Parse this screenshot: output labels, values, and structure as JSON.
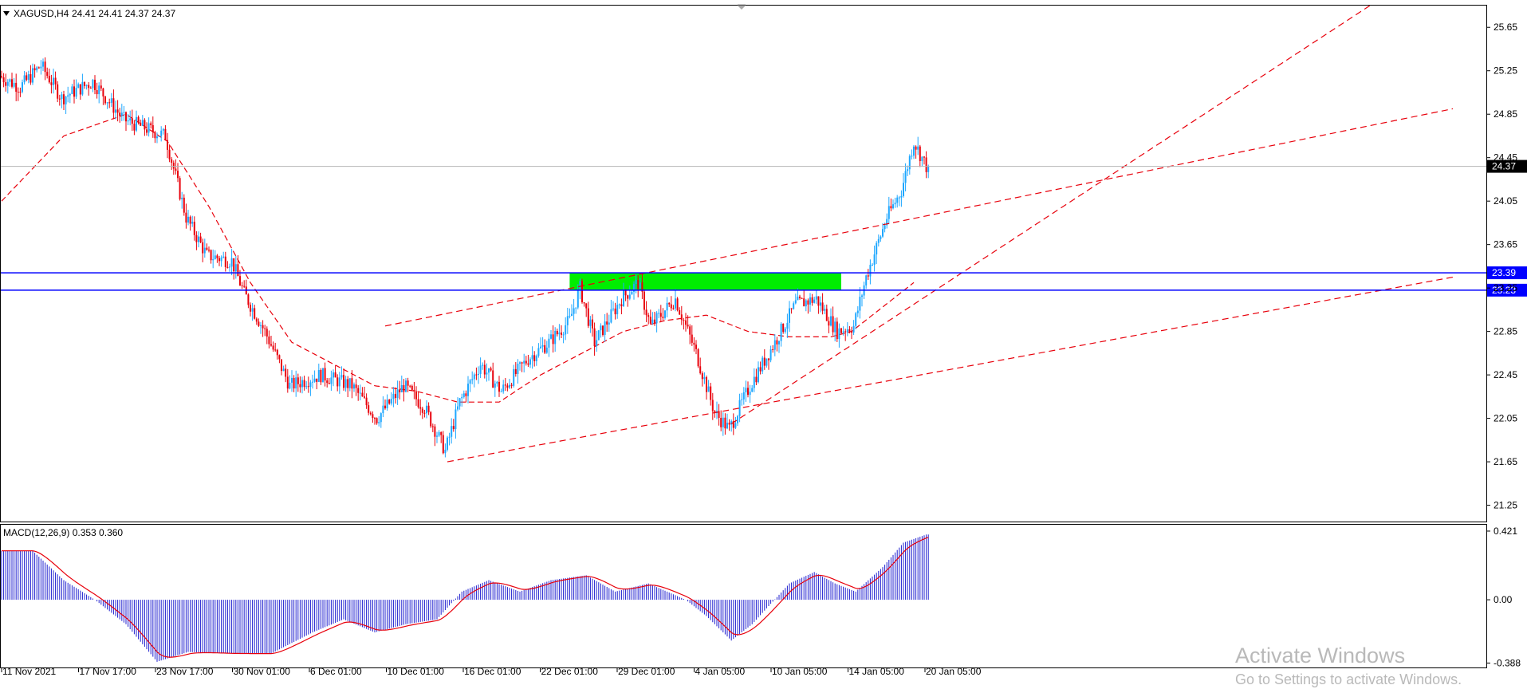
{
  "header": {
    "symbol_label": "XAGUSD,H4",
    "ohlc": "24.41 24.41 24.37 24.37"
  },
  "macd": {
    "label": "MACD(12,26,9) 0.353 0.360",
    "axis_ticks": [
      "0.421",
      "0.00",
      "-0.388"
    ],
    "axis_values": [
      0.421,
      0.0,
      -0.388
    ]
  },
  "price_axis": {
    "ticks": [
      "25.65",
      "25.25",
      "24.85",
      "24.45",
      "24.05",
      "23.65",
      "23.25",
      "22.85",
      "22.45",
      "22.05",
      "21.65",
      "21.25"
    ],
    "current_price_tag": "24.37",
    "current_price": 24.37,
    "levels": [
      {
        "label": "23.39",
        "value": 23.39,
        "color": "#0000ff"
      },
      {
        "label": "23.23",
        "value": 23.23,
        "color": "#0000ff"
      }
    ]
  },
  "time_axis": {
    "labels": [
      "11 Nov 2021",
      "17 Nov 17:00",
      "23 Nov 17:00",
      "30 Nov 01:00",
      "6 Dec 01:00",
      "10 Dec 01:00",
      "16 Dec 01:00",
      "22 Dec 01:00",
      "29 Dec 01:00",
      "4 Jan 05:00",
      "10 Jan 05:00",
      "14 Jan 05:00",
      "20 Jan 05:00"
    ]
  },
  "colors": {
    "bull": "#1ea7ff",
    "bear": "#e8000b",
    "moving_average": "#e8000b",
    "trendline": "#e8000b",
    "zone": "#00ee00",
    "macd_hist": "#1f1fcf",
    "macd_signal": "#e8000b"
  },
  "watermark": {
    "line1": "Activate Windows",
    "line2": "Go to Settings to activate Windows."
  },
  "chart_data": {
    "type": "candlestick",
    "symbol": "XAGUSD",
    "timeframe": "H4",
    "price_range": [
      21.1,
      25.85
    ],
    "price_path_anchors": [
      [
        0,
        25.2
      ],
      [
        10,
        25.1
      ],
      [
        20,
        25.3
      ],
      [
        30,
        25.0
      ],
      [
        45,
        25.15
      ],
      [
        60,
        24.8
      ],
      [
        80,
        24.65
      ],
      [
        90,
        23.9
      ],
      [
        100,
        23.55
      ],
      [
        112,
        23.5
      ],
      [
        118,
        23.2
      ],
      [
        128,
        22.85
      ],
      [
        140,
        22.35
      ],
      [
        155,
        22.45
      ],
      [
        170,
        22.35
      ],
      [
        182,
        22.05
      ],
      [
        195,
        22.35
      ],
      [
        205,
        22.15
      ],
      [
        215,
        21.75
      ],
      [
        222,
        22.2
      ],
      [
        232,
        22.55
      ],
      [
        242,
        22.3
      ],
      [
        255,
        22.6
      ],
      [
        265,
        22.75
      ],
      [
        275,
        22.95
      ],
      [
        280,
        23.25
      ],
      [
        287,
        22.75
      ],
      [
        300,
        23.15
      ],
      [
        308,
        23.3
      ],
      [
        314,
        22.9
      ],
      [
        326,
        23.15
      ],
      [
        336,
        22.65
      ],
      [
        345,
        22.1
      ],
      [
        352,
        21.95
      ],
      [
        362,
        22.35
      ],
      [
        374,
        22.75
      ],
      [
        384,
        23.1
      ],
      [
        394,
        23.15
      ],
      [
        404,
        22.85
      ],
      [
        412,
        22.9
      ],
      [
        418,
        23.35
      ],
      [
        428,
        23.9
      ],
      [
        435,
        24.15
      ],
      [
        441,
        24.6
      ],
      [
        447,
        24.37
      ]
    ],
    "moving_average_anchors": [
      [
        0,
        24.05
      ],
      [
        30,
        24.65
      ],
      [
        60,
        24.85
      ],
      [
        80,
        24.6
      ],
      [
        100,
        24.0
      ],
      [
        120,
        23.3
      ],
      [
        140,
        22.75
      ],
      [
        160,
        22.55
      ],
      [
        180,
        22.35
      ],
      [
        200,
        22.3
      ],
      [
        220,
        22.2
      ],
      [
        240,
        22.2
      ],
      [
        260,
        22.45
      ],
      [
        280,
        22.65
      ],
      [
        300,
        22.85
      ],
      [
        320,
        22.95
      ],
      [
        340,
        23.0
      ],
      [
        360,
        22.85
      ],
      [
        380,
        22.8
      ],
      [
        400,
        22.8
      ],
      [
        410,
        22.85
      ],
      [
        420,
        23.0
      ],
      [
        430,
        23.15
      ],
      [
        440,
        23.3
      ]
    ],
    "trendlines": [
      {
        "from": [
          215,
          21.65
        ],
        "to": [
          700,
          23.35
        ]
      },
      {
        "from": [
          185,
          22.9
        ],
        "to": [
          700,
          24.9
        ]
      },
      {
        "from": [
          352,
          22.0
        ],
        "to": [
          660,
          25.85
        ]
      }
    ],
    "zones": [
      {
        "x0": 274,
        "x1": 405,
        "y0": 23.23,
        "y1": 23.39
      }
    ],
    "macd_anchors": [
      [
        0,
        0.3
      ],
      [
        15,
        0.3
      ],
      [
        30,
        0.12
      ],
      [
        45,
        0.0
      ],
      [
        60,
        -0.15
      ],
      [
        75,
        -0.38
      ],
      [
        90,
        -0.32
      ],
      [
        110,
        -0.33
      ],
      [
        130,
        -0.33
      ],
      [
        150,
        -0.2
      ],
      [
        165,
        -0.12
      ],
      [
        180,
        -0.2
      ],
      [
        195,
        -0.15
      ],
      [
        210,
        -0.12
      ],
      [
        222,
        0.05
      ],
      [
        235,
        0.12
      ],
      [
        250,
        0.05
      ],
      [
        265,
        0.12
      ],
      [
        282,
        0.15
      ],
      [
        296,
        0.05
      ],
      [
        312,
        0.1
      ],
      [
        330,
        0.0
      ],
      [
        340,
        -0.1
      ],
      [
        352,
        -0.25
      ],
      [
        362,
        -0.15
      ],
      [
        380,
        0.1
      ],
      [
        392,
        0.17
      ],
      [
        402,
        0.1
      ],
      [
        412,
        0.05
      ],
      [
        425,
        0.2
      ],
      [
        435,
        0.35
      ],
      [
        446,
        0.4
      ]
    ],
    "macd_range": [
      -0.42,
      0.46
    ],
    "candles_total": 448
  }
}
